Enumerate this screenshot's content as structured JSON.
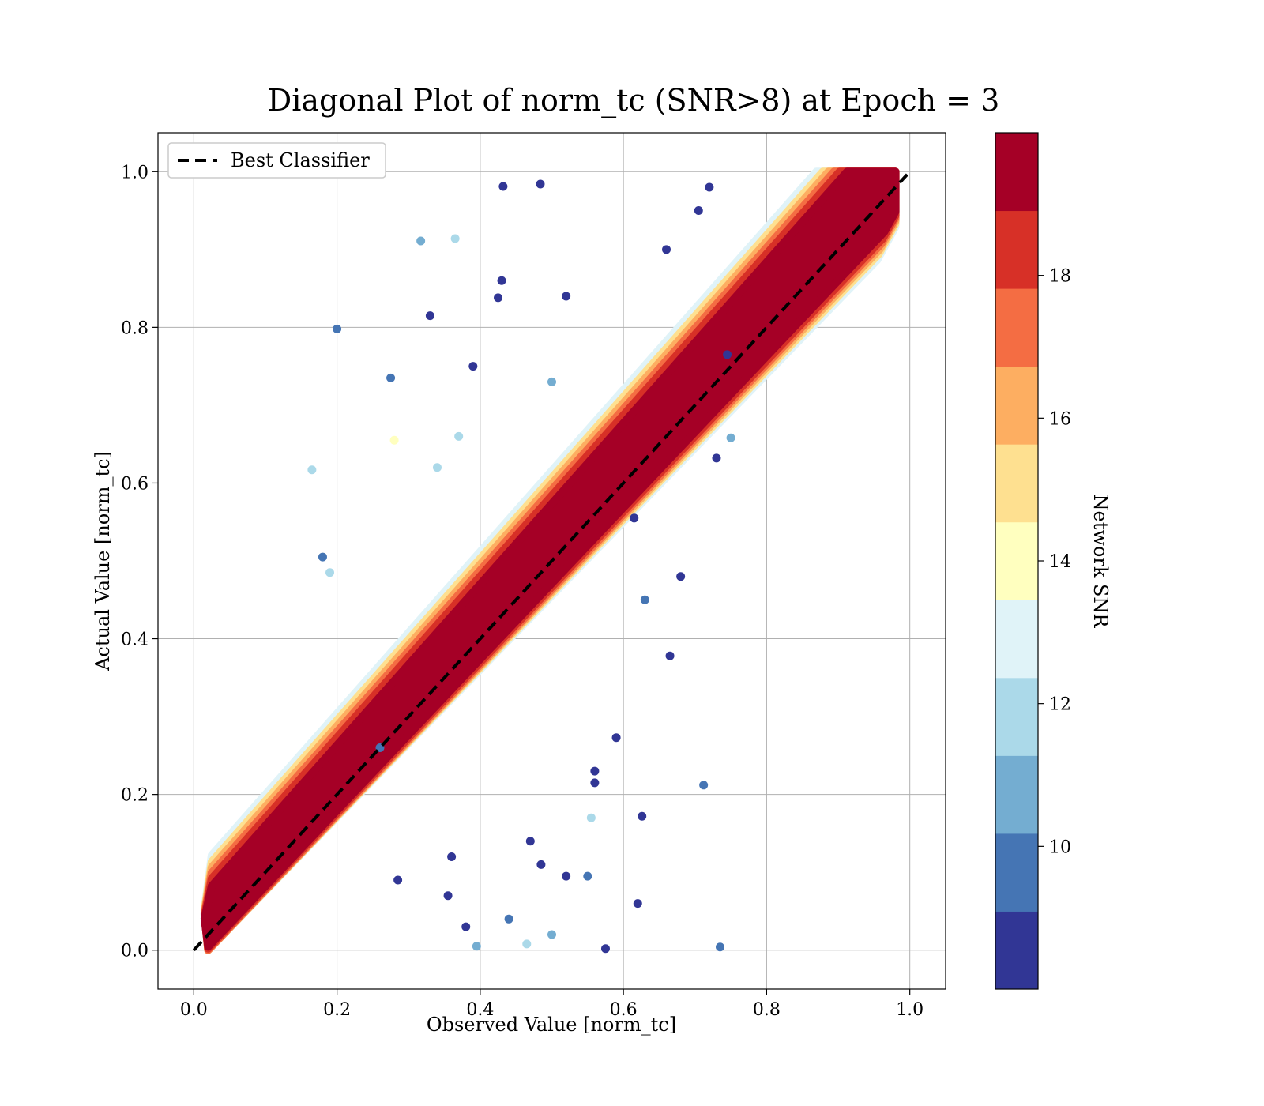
{
  "chart_data": {
    "type": "scatter",
    "title": "Diagonal Plot of norm_tc (SNR>8) at Epoch = 3",
    "xlabel": "Observed Value [norm_tc]",
    "ylabel": "Actual Value [norm_tc]",
    "xlim": [
      -0.05,
      1.05
    ],
    "ylim": [
      -0.05,
      1.05
    ],
    "xticks": [
      "0.0",
      "0.2",
      "0.4",
      "0.6",
      "0.8",
      "1.0"
    ],
    "yticks": [
      "0.0",
      "0.2",
      "0.4",
      "0.6",
      "0.8",
      "1.0"
    ],
    "grid": true,
    "legend": {
      "label": "Best Classifier",
      "placement": "top-left",
      "line_style": "dashed",
      "color": "#000000"
    },
    "reference_line": {
      "label": "Best Classifier",
      "x": [
        0.0,
        1.0
      ],
      "y": [
        0.0,
        1.0
      ]
    },
    "colorbar": {
      "label": "Network SNR",
      "range": [
        8,
        20
      ],
      "ticks": [
        "10",
        "12",
        "14",
        "16",
        "18"
      ],
      "colors": [
        "#313695",
        "#4575b4",
        "#74add1",
        "#abd9e9",
        "#e0f3f8",
        "#ffffbf",
        "#fee090",
        "#fdae61",
        "#f46d43",
        "#d73027",
        "#a50026"
      ]
    },
    "scatter_pattern": "dense cloud along y = x; high-SNR (dark red) points concentrated near the diagonal, low-SNR (blue) points spread farther away",
    "series": [
      {
        "x": [
          0.2,
          0.165,
          0.317,
          0.365,
          0.432,
          0.484,
          0.395,
          0.712,
          0.735,
          0.575,
          0.626,
          0.745,
          0.465,
          0.59,
          0.37,
          0.28,
          0.33,
          0.425,
          0.52,
          0.5,
          0.275,
          0.62,
          0.665,
          0.73,
          0.75,
          0.18,
          0.19,
          0.355,
          0.485,
          0.56,
          0.555,
          0.55,
          0.285,
          0.38,
          0.615,
          0.34,
          0.68,
          0.72,
          0.66,
          0.52,
          0.63,
          0.36,
          0.56,
          0.26,
          0.705,
          0.44,
          0.5,
          0.47,
          0.43,
          0.39
        ],
        "y": [
          0.798,
          0.617,
          0.911,
          0.914,
          0.981,
          0.984,
          0.005,
          0.212,
          0.004,
          0.002,
          0.172,
          0.765,
          0.008,
          0.273,
          0.66,
          0.655,
          0.815,
          0.838,
          0.095,
          0.73,
          0.735,
          0.06,
          0.378,
          0.632,
          0.658,
          0.505,
          0.485,
          0.07,
          0.11,
          0.215,
          0.17,
          0.095,
          0.09,
          0.03,
          0.555,
          0.62,
          0.48,
          0.98,
          0.9,
          0.84,
          0.45,
          0.12,
          0.23,
          0.26,
          0.95,
          0.04,
          0.02,
          0.14,
          0.86,
          0.75
        ],
        "snr": [
          10,
          12,
          11,
          12,
          9,
          9,
          11,
          10,
          10,
          9,
          9,
          9,
          12,
          9,
          12,
          14,
          9,
          9,
          9,
          11,
          10,
          9,
          9,
          9,
          11,
          10,
          12,
          9,
          9,
          9,
          12,
          10,
          9,
          9,
          9,
          12,
          9,
          9,
          9,
          9,
          10,
          9,
          9,
          10,
          9,
          10,
          11,
          9,
          9,
          9
        ]
      }
    ]
  }
}
